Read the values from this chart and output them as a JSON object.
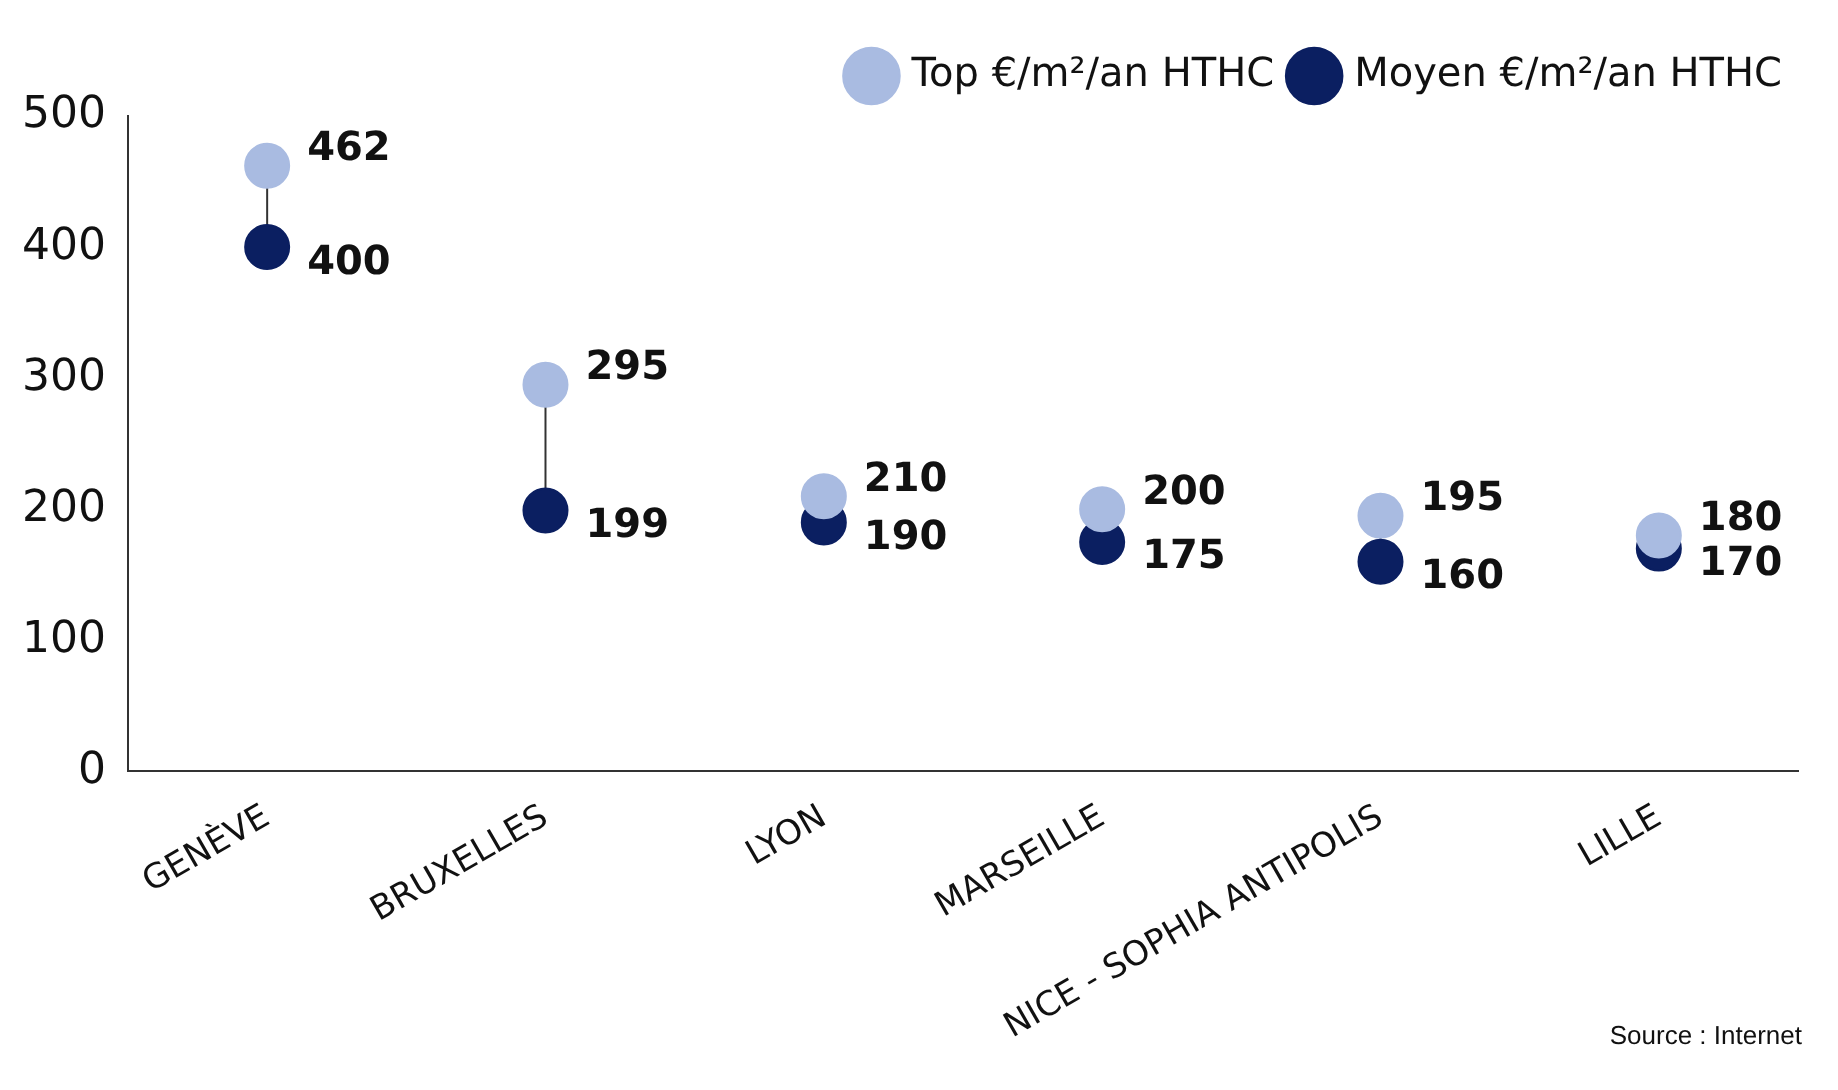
{
  "chart_data": {
    "type": "scatter",
    "categories": [
      "GENÈVE",
      "BRUXELLES",
      "LYON",
      "MARSEILLE",
      "NICE - SOPHIA ANTIPOLIS",
      "LILLE"
    ],
    "series": [
      {
        "name": "Top €/m²/an HTHC",
        "color": "#a9bbe1",
        "values": [
          462,
          295,
          210,
          200,
          195,
          180
        ]
      },
      {
        "name": "Moyen €/m²/an HTHC",
        "color": "#0b1f61",
        "values": [
          400,
          199,
          190,
          175,
          160,
          170
        ]
      }
    ],
    "ylim": [
      0,
      500
    ],
    "yticks": [
      0,
      100,
      200,
      300,
      400,
      500
    ],
    "grid": false,
    "legend": "top right",
    "marker": "circle",
    "data_labels": true,
    "annotations": [
      "Source : Internet"
    ]
  }
}
